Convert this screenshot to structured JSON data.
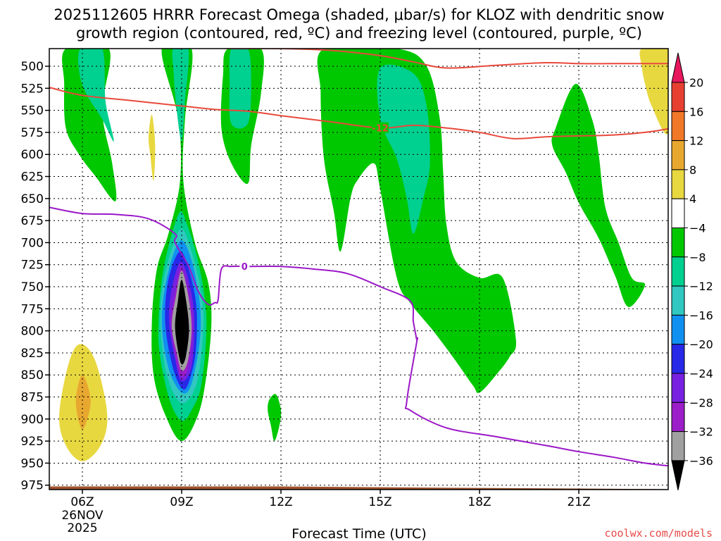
{
  "chart_data": {
    "type": "heatmap",
    "title_line1": "2025112605 HRRR Forecast Omega (shaded, μbar/s) for KLOZ with dendritic snow",
    "title_line2": "growth region (contoured, red, ºC) and freezing level (contoured, purple, ºC)",
    "xlabel": "Forecast Time (UTC)",
    "x_range_hours_utc": [
      5,
      23.7
    ],
    "x_ticks": [
      {
        "hour": 6,
        "label": "06Z",
        "sub1": "26NOV",
        "sub2": "2025"
      },
      {
        "hour": 9,
        "label": "09Z",
        "sub1": "",
        "sub2": ""
      },
      {
        "hour": 12,
        "label": "12Z",
        "sub1": "",
        "sub2": ""
      },
      {
        "hour": 15,
        "label": "15Z",
        "sub1": "",
        "sub2": ""
      },
      {
        "hour": 18,
        "label": "18Z",
        "sub1": "",
        "sub2": ""
      },
      {
        "hour": 21,
        "label": "21Z",
        "sub1": "",
        "sub2": ""
      }
    ],
    "y_range_hpa": [
      980,
      480
    ],
    "y_ticks": [
      500,
      525,
      550,
      575,
      600,
      625,
      650,
      675,
      700,
      725,
      750,
      775,
      800,
      825,
      850,
      875,
      900,
      925,
      950,
      975
    ],
    "grid": true,
    "colorbar": {
      "units": "μbar/s",
      "levels": [
        "20",
        "16",
        "12",
        "8",
        "4",
        "−4",
        "−8",
        "−12",
        "−16",
        "−20",
        "−24",
        "−28",
        "−32",
        "−36"
      ],
      "colors": [
        "#e8175d",
        "#e84030",
        "#f07828",
        "#e8a830",
        "#e8d840",
        "#ffffff",
        "#00c800",
        "#00d090",
        "#30c8c0",
        "#1090f0",
        "#2828e8",
        "#7820e0",
        "#9c1ec8",
        "#a0a0a0",
        "#000000"
      ]
    },
    "omega_regions": [
      {
        "level": -4,
        "color": "#00c800",
        "pts": [
          [
            5.5,
            480
          ],
          [
            6.8,
            480
          ],
          [
            6.6,
            550
          ],
          [
            6.9,
            610
          ],
          [
            7.0,
            653
          ],
          [
            6.4,
            625
          ],
          [
            5.9,
            600
          ],
          [
            5.5,
            570
          ],
          [
            5.45,
            520
          ]
        ]
      },
      {
        "level": -8,
        "color": "#00d090",
        "pts": [
          [
            5.95,
            480
          ],
          [
            6.6,
            480
          ],
          [
            6.7,
            540
          ],
          [
            6.95,
            585
          ],
          [
            6.6,
            560
          ],
          [
            6.1,
            530
          ],
          [
            5.9,
            505
          ]
        ]
      },
      {
        "level": -4,
        "color": "#00c800",
        "pts": [
          [
            8.4,
            480
          ],
          [
            9.3,
            480
          ],
          [
            9.1,
            560
          ],
          [
            9.05,
            630
          ],
          [
            9.4,
            700
          ],
          [
            9.8,
            745
          ],
          [
            9.9,
            790
          ],
          [
            9.75,
            850
          ],
          [
            9.5,
            895
          ],
          [
            9.0,
            925
          ],
          [
            8.5,
            895
          ],
          [
            8.15,
            850
          ],
          [
            8.1,
            790
          ],
          [
            8.25,
            730
          ],
          [
            8.6,
            690
          ],
          [
            8.95,
            630
          ],
          [
            8.9,
            560
          ]
        ]
      },
      {
        "level": -8,
        "color": "#00d090",
        "pts": [
          [
            8.75,
            480
          ],
          [
            9.2,
            480
          ],
          [
            9.1,
            540
          ],
          [
            9.0,
            585
          ],
          [
            8.85,
            550
          ],
          [
            8.75,
            505
          ]
        ]
      },
      {
        "level": -8,
        "color": "#00d090",
        "pts": [
          [
            8.9,
            668
          ],
          [
            9.15,
            678
          ],
          [
            9.55,
            730
          ],
          [
            9.75,
            790
          ],
          [
            9.6,
            860
          ],
          [
            9.3,
            890
          ],
          [
            9.0,
            902
          ],
          [
            8.65,
            880
          ],
          [
            8.35,
            830
          ],
          [
            8.3,
            790
          ],
          [
            8.45,
            730
          ]
        ]
      },
      {
        "level": -12,
        "color": "#30c8c0",
        "pts": [
          [
            8.95,
            685
          ],
          [
            9.3,
            710
          ],
          [
            9.6,
            760
          ],
          [
            9.65,
            800
          ],
          [
            9.45,
            860
          ],
          [
            9.0,
            882
          ],
          [
            8.55,
            850
          ],
          [
            8.35,
            790
          ],
          [
            8.5,
            735
          ]
        ]
      },
      {
        "level": -16,
        "color": "#1090f0",
        "pts": [
          [
            8.95,
            698
          ],
          [
            9.3,
            720
          ],
          [
            9.55,
            770
          ],
          [
            9.55,
            810
          ],
          [
            9.3,
            860
          ],
          [
            9.0,
            870
          ],
          [
            8.6,
            842
          ],
          [
            8.4,
            790
          ],
          [
            8.55,
            740
          ]
        ]
      },
      {
        "level": -20,
        "color": "#2828e8",
        "pts": [
          [
            8.95,
            710
          ],
          [
            9.25,
            735
          ],
          [
            9.45,
            775
          ],
          [
            9.42,
            825
          ],
          [
            9.2,
            860
          ],
          [
            9.0,
            865
          ],
          [
            8.72,
            840
          ],
          [
            8.5,
            790
          ],
          [
            8.6,
            742
          ]
        ]
      },
      {
        "level": -24,
        "color": "#7820e0",
        "pts": [
          [
            8.97,
            722
          ],
          [
            9.22,
            745
          ],
          [
            9.38,
            785
          ],
          [
            9.3,
            840
          ],
          [
            9.0,
            857
          ],
          [
            8.8,
            832
          ],
          [
            8.62,
            790
          ],
          [
            8.7,
            752
          ]
        ]
      },
      {
        "level": -28,
        "color": "#9c1ec8",
        "pts": [
          [
            8.98,
            728
          ],
          [
            9.2,
            755
          ],
          [
            9.33,
            795
          ],
          [
            9.2,
            840
          ],
          [
            9.0,
            852
          ],
          [
            8.82,
            830
          ],
          [
            8.68,
            790
          ],
          [
            8.8,
            758
          ]
        ]
      },
      {
        "level": -32,
        "color": "#a0a0a0",
        "pts": [
          [
            9.0,
            732
          ],
          [
            9.22,
            765
          ],
          [
            9.3,
            800
          ],
          [
            9.18,
            835
          ],
          [
            9.0,
            845
          ],
          [
            8.85,
            825
          ],
          [
            8.7,
            795
          ],
          [
            8.82,
            762
          ]
        ]
      },
      {
        "level": -36,
        "color": "#000000",
        "pts": [
          [
            9.0,
            742
          ],
          [
            9.15,
            770
          ],
          [
            9.22,
            800
          ],
          [
            9.12,
            830
          ],
          [
            9.0,
            838
          ],
          [
            8.9,
            825
          ],
          [
            8.8,
            795
          ],
          [
            8.88,
            768
          ]
        ]
      },
      {
        "level": -4,
        "color": "#00c800",
        "pts": [
          [
            10.4,
            480
          ],
          [
            11.4,
            480
          ],
          [
            11.4,
            530
          ],
          [
            11.1,
            590
          ],
          [
            11.0,
            633
          ],
          [
            10.5,
            610
          ],
          [
            10.2,
            570
          ],
          [
            10.25,
            510
          ]
        ]
      },
      {
        "level": -8,
        "color": "#00d090",
        "pts": [
          [
            10.5,
            480
          ],
          [
            11.0,
            480
          ],
          [
            11.1,
            520
          ],
          [
            11.0,
            565
          ],
          [
            10.5,
            565
          ],
          [
            10.45,
            520
          ]
        ]
      },
      {
        "level": -4,
        "color": "#00c800",
        "pts": [
          [
            11.65,
            878
          ],
          [
            11.85,
            872
          ],
          [
            12.0,
            890
          ],
          [
            11.95,
            908
          ],
          [
            11.8,
            925
          ],
          [
            11.7,
            908
          ],
          [
            11.6,
            890
          ]
        ]
      },
      {
        "level": -4,
        "color": "#00c800",
        "pts": [
          [
            13.3,
            480
          ],
          [
            15.5,
            480
          ],
          [
            16.4,
            500
          ],
          [
            16.8,
            560
          ],
          [
            16.9,
            620
          ],
          [
            17.0,
            680
          ],
          [
            17.3,
            722
          ],
          [
            18.0,
            740
          ],
          [
            18.7,
            740
          ],
          [
            19.1,
            810
          ],
          [
            18.9,
            830
          ],
          [
            18.5,
            850
          ],
          [
            18.0,
            870
          ],
          [
            17.8,
            862
          ],
          [
            17.2,
            830
          ],
          [
            16.6,
            800
          ],
          [
            15.9,
            768
          ],
          [
            15.5,
            740
          ],
          [
            15.0,
            640
          ],
          [
            14.8,
            610
          ],
          [
            14.3,
            630
          ],
          [
            14.1,
            650
          ],
          [
            13.8,
            710
          ],
          [
            13.6,
            665
          ],
          [
            13.3,
            605
          ],
          [
            13.2,
            530
          ]
        ]
      },
      {
        "level": -8,
        "color": "#00d090",
        "pts": [
          [
            15.0,
            502
          ],
          [
            16.0,
            508
          ],
          [
            16.4,
            545
          ],
          [
            16.5,
            610
          ],
          [
            16.3,
            650
          ],
          [
            16.0,
            690
          ],
          [
            15.8,
            650
          ],
          [
            15.5,
            605
          ],
          [
            15.0,
            560
          ]
        ]
      },
      {
        "level": -4,
        "color": "#00c800",
        "pts": [
          [
            20.3,
            570
          ],
          [
            20.9,
            520
          ],
          [
            21.4,
            560
          ],
          [
            21.6,
            600
          ],
          [
            21.8,
            660
          ],
          [
            22.2,
            700
          ],
          [
            22.6,
            740
          ],
          [
            23.0,
            748
          ],
          [
            22.5,
            773
          ],
          [
            22.1,
            738
          ],
          [
            21.6,
            695
          ],
          [
            21.0,
            655
          ],
          [
            20.6,
            620
          ],
          [
            20.2,
            590
          ]
        ]
      },
      {
        "level": 4,
        "color": "#e8d840",
        "pts": [
          [
            22.9,
            480
          ],
          [
            23.7,
            480
          ],
          [
            23.7,
            575
          ],
          [
            23.2,
            545
          ],
          [
            23.0,
            520
          ],
          [
            22.9,
            500
          ]
        ]
      },
      {
        "level": 4,
        "color": "#e8d840",
        "pts": [
          [
            5.95,
            815
          ],
          [
            6.4,
            835
          ],
          [
            6.75,
            895
          ],
          [
            6.55,
            930
          ],
          [
            6.0,
            948
          ],
          [
            5.5,
            930
          ],
          [
            5.3,
            895
          ],
          [
            5.6,
            835
          ]
        ]
      },
      {
        "level": 8,
        "color": "#e8a830",
        "pts": [
          [
            6.0,
            850
          ],
          [
            6.25,
            880
          ],
          [
            6.0,
            912
          ],
          [
            5.8,
            880
          ]
        ]
      },
      {
        "level": 4,
        "color": "#e8d840",
        "pts": [
          [
            8.1,
            555
          ],
          [
            8.2,
            590
          ],
          [
            8.15,
            630
          ],
          [
            8.05,
            600
          ],
          [
            8.0,
            580
          ]
        ]
      }
    ],
    "dendritic_contours": [
      {
        "label": "",
        "pts": [
          [
            8.9,
            480
          ],
          [
            9.5,
            478
          ],
          [
            10.5,
            480
          ],
          [
            12.0,
            480
          ],
          [
            13.5,
            482
          ],
          [
            15.0,
            488
          ],
          [
            16.0,
            495
          ],
          [
            17.0,
            502
          ],
          [
            18.5,
            499
          ],
          [
            20.0,
            496
          ],
          [
            21.0,
            497
          ],
          [
            22.0,
            497
          ],
          [
            23.0,
            497
          ],
          [
            23.7,
            497
          ]
        ]
      },
      {
        "label": "-12",
        "label_at": [
          15.0,
          570
        ],
        "pts": [
          [
            5.0,
            524
          ],
          [
            6.0,
            533
          ],
          [
            7.5,
            539
          ],
          [
            9.0,
            545
          ],
          [
            10.0,
            549
          ],
          [
            11.0,
            551
          ],
          [
            12.0,
            556
          ],
          [
            13.5,
            563
          ],
          [
            15.0,
            570
          ],
          [
            16.0,
            567
          ],
          [
            17.0,
            570
          ],
          [
            18.0,
            575
          ],
          [
            19.0,
            582
          ],
          [
            20.0,
            580
          ],
          [
            21.0,
            579
          ],
          [
            22.0,
            578
          ],
          [
            23.0,
            575
          ],
          [
            23.7,
            571
          ]
        ]
      }
    ],
    "freezing_level": {
      "label": "0",
      "label_at": [
        10.9,
        727
      ],
      "pts": [
        [
          5.0,
          660
        ],
        [
          6.0,
          667
        ],
        [
          7.0,
          668
        ],
        [
          8.0,
          673
        ],
        [
          8.8,
          690
        ],
        [
          8.8,
          700
        ],
        [
          9.2,
          726
        ],
        [
          9.5,
          755
        ],
        [
          9.8,
          770
        ],
        [
          10.0,
          768
        ],
        [
          10.1,
          765
        ],
        [
          10.2,
          730
        ],
        [
          10.5,
          727
        ],
        [
          11.0,
          727
        ],
        [
          12.0,
          727
        ],
        [
          13.0,
          730
        ],
        [
          14.0,
          735
        ],
        [
          15.0,
          750
        ],
        [
          15.9,
          766
        ],
        [
          16.0,
          790
        ],
        [
          16.1,
          810
        ],
        [
          16.1,
          813
        ],
        [
          15.8,
          880
        ],
        [
          15.9,
          890
        ],
        [
          17.0,
          910
        ],
        [
          18.5,
          920
        ],
        [
          20.0,
          930
        ],
        [
          21.0,
          937
        ],
        [
          22.0,
          943
        ],
        [
          23.0,
          950
        ],
        [
          23.7,
          953
        ]
      ]
    },
    "terrain_top_hpa": 978
  },
  "credit": "coolwx.com/models"
}
